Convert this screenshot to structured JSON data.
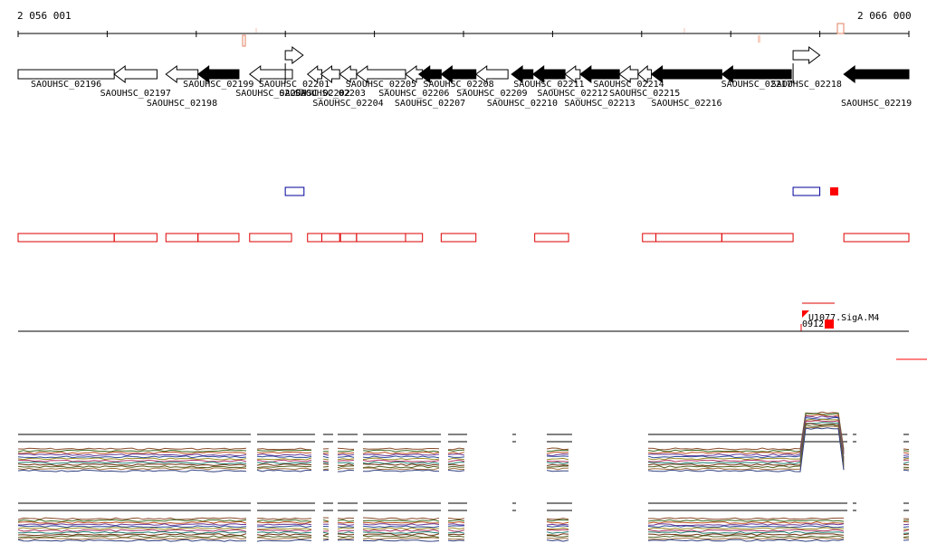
{
  "ruler": {
    "start_label": "2 056 001",
    "end_label": "2 066 000",
    "start": 2056001,
    "end": 2066000
  },
  "colors": {
    "gene_fill_dark": "#000000",
    "gene_fill_light": "#ffffff",
    "utr_red": "#dd0000",
    "blue": "#000099",
    "fill_red": "#ff0000"
  },
  "genes": [
    {
      "label": "SAOUHSC_02196",
      "start": 2056001,
      "end": 2057080,
      "strand": "+",
      "dark": false,
      "row": 0
    },
    {
      "label": "SAOUHSC_02197",
      "start": 2057080,
      "end": 2057560,
      "strand": "-",
      "dark": false,
      "row": 1
    },
    {
      "label": "SAOUHSC_02198",
      "start": 2057660,
      "end": 2058020,
      "strand": "-",
      "dark": false,
      "row": 2
    },
    {
      "label": "SAOUHSC_02199",
      "start": 2058020,
      "end": 2058480,
      "strand": "-",
      "dark": true,
      "row": 0
    },
    {
      "label": "SAOUHSC_02200",
      "start": 2058600,
      "end": 2059080,
      "strand": "-",
      "dark": false,
      "row": 1
    },
    {
      "label": "SAOUHSC_02201",
      "start": 2059000,
      "end": 2059200,
      "strand": "+",
      "dark": false,
      "row": 0,
      "raised": true
    },
    {
      "label": "SAOUHSC_02202",
      "start": 2059250,
      "end": 2059410,
      "strand": "-",
      "dark": false,
      "row": 1
    },
    {
      "label": "SAOUHSC_02203",
      "start": 2059400,
      "end": 2059610,
      "strand": "-",
      "dark": false,
      "row": 1
    },
    {
      "label": "SAOUHSC_02204",
      "start": 2059610,
      "end": 2059800,
      "strand": "-",
      "dark": false,
      "row": 2
    },
    {
      "label": "SAOUHSC_02205",
      "start": 2059800,
      "end": 2060350,
      "strand": "-",
      "dark": false,
      "row": 0
    },
    {
      "label": "SAOUHSC_02206",
      "start": 2060350,
      "end": 2060540,
      "strand": "-",
      "dark": false,
      "row": 1
    },
    {
      "label": "SAOUHSC_02207",
      "start": 2060500,
      "end": 2060750,
      "strand": "-",
      "dark": true,
      "row": 2
    },
    {
      "label": "SAOUHSC_02208",
      "start": 2060750,
      "end": 2061140,
      "strand": "-",
      "dark": true,
      "row": 0
    },
    {
      "label": "SAOUHSC_02209",
      "start": 2061140,
      "end": 2061500,
      "strand": "-",
      "dark": false,
      "row": 1
    },
    {
      "label": "SAOUHSC_02210",
      "start": 2061540,
      "end": 2061780,
      "strand": "-",
      "dark": true,
      "row": 2
    },
    {
      "label": "SAOUHSC_02211",
      "start": 2061780,
      "end": 2062140,
      "strand": "-",
      "dark": true,
      "row": 0
    },
    {
      "label": "SAOUHSC_02212",
      "start": 2062140,
      "end": 2062310,
      "strand": "-",
      "dark": false,
      "row": 1
    },
    {
      "label": "SAOUHSC_02213",
      "start": 2062310,
      "end": 2062750,
      "strand": "-",
      "dark": true,
      "row": 2
    },
    {
      "label": "SAOUHSC_02214",
      "start": 2062750,
      "end": 2062960,
      "strand": "-",
      "dark": false,
      "row": 0
    },
    {
      "label": "SAOUHSC_02215",
      "start": 2062960,
      "end": 2063110,
      "strand": "-",
      "dark": false,
      "row": 1
    },
    {
      "label": "SAOUHSC_02216",
      "start": 2063110,
      "end": 2063900,
      "strand": "-",
      "dark": true,
      "row": 2
    },
    {
      "label": "SAOUHSC_02217",
      "start": 2063900,
      "end": 2064680,
      "strand": "-",
      "dark": true,
      "row": 0
    },
    {
      "label": "SAOUHSC_02218",
      "start": 2064700,
      "end": 2065000,
      "strand": "+",
      "dark": false,
      "row": 0,
      "raised": true
    },
    {
      "label": "SAOUHSC_02219",
      "start": 2065270,
      "end": 2066000,
      "strand": "-",
      "dark": true,
      "row": 2
    }
  ],
  "features_red": [
    [
      2056001,
      2057080
    ],
    [
      2057080,
      2057560
    ],
    [
      2057660,
      2058020
    ],
    [
      2058020,
      2058480
    ],
    [
      2058600,
      2059070
    ],
    [
      2059250,
      2059410
    ],
    [
      2059410,
      2059610
    ],
    [
      2059620,
      2059800
    ],
    [
      2059800,
      2060350
    ],
    [
      2060350,
      2060540
    ],
    [
      2060750,
      2061140
    ],
    [
      2061800,
      2062180
    ],
    [
      2063010,
      2063160
    ],
    [
      2063160,
      2063900
    ],
    [
      2063900,
      2064700
    ],
    [
      2065270,
      2066000
    ]
  ],
  "features_blue": [
    [
      2059000,
      2059210
    ],
    [
      2064700,
      2065000
    ]
  ],
  "motif": {
    "line1": "U1077.SigA.M4",
    "line2": "0912"
  }
}
